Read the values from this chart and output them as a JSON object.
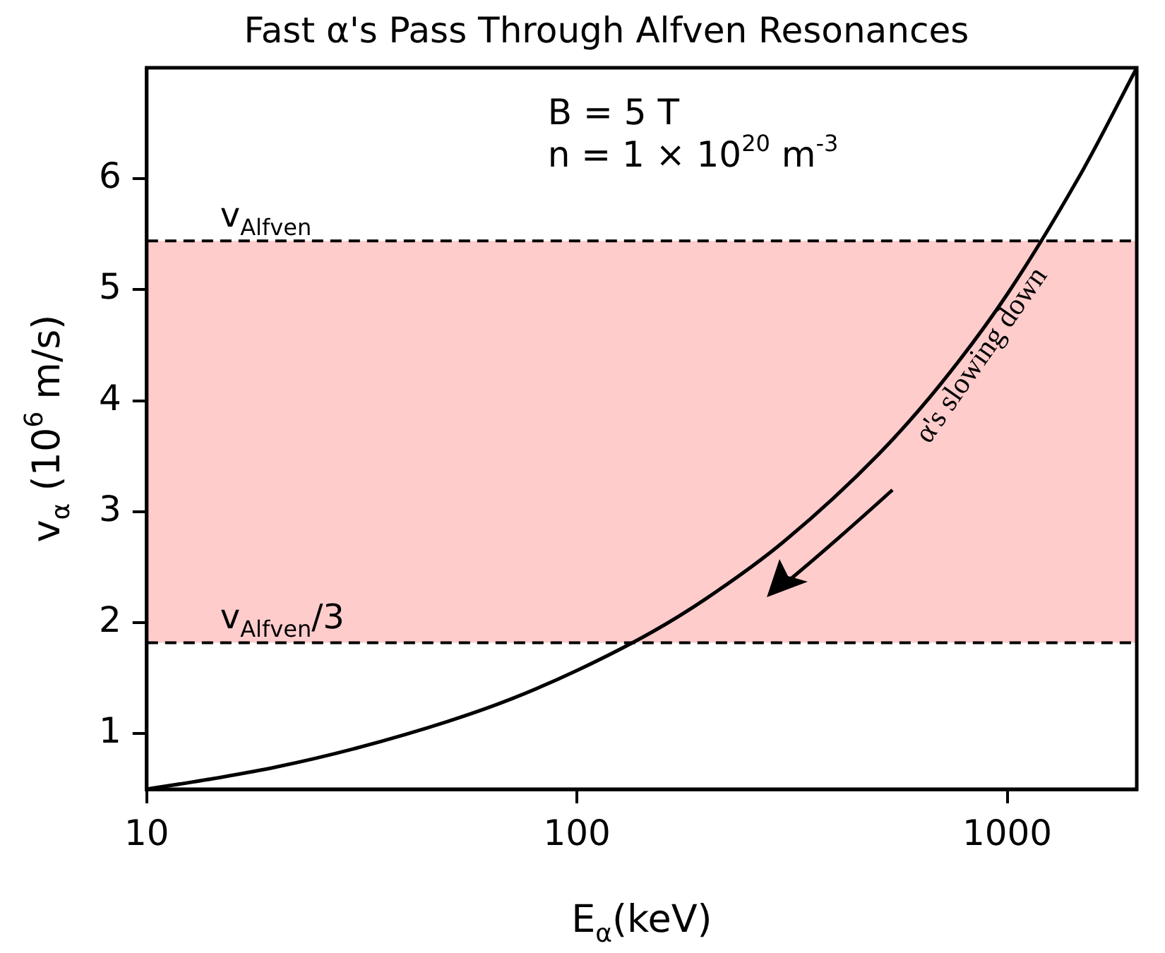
{
  "chart_data": {
    "type": "line",
    "title": "Fast α's Pass Through Alfven Resonances",
    "xlabel": "E$_{α}$(keV)",
    "ylabel": "v$_{α}$ (10$^{6}$ m/s)",
    "x": [
      10,
      15,
      20,
      30,
      50,
      70,
      100,
      150,
      200,
      300,
      500,
      700,
      1000,
      1500,
      2000
    ],
    "series": [
      {
        "color": "#000000",
        "values": [
          0.5,
          0.61,
          0.7,
          0.86,
          1.11,
          1.31,
          1.57,
          1.92,
          2.22,
          2.72,
          3.51,
          4.15,
          4.96,
          6.08,
          7.0
        ]
      }
    ],
    "log": "x",
    "xlim": [
      10,
      2000
    ],
    "xticks": [
      10,
      100,
      1000
    ],
    "ylim": [
      0.5,
      7.0
    ],
    "yticks": [
      1,
      2,
      3,
      4,
      5,
      6
    ],
    "bands": [
      {
        "axis": "y",
        "from": 1.82,
        "to": 5.44,
        "color": "#ffcccc"
      }
    ],
    "ref_lines": [
      {
        "axis": "y",
        "value": 5.44,
        "label": "v$_{Alfven}$",
        "line_style": "dashed",
        "color": "#000000"
      },
      {
        "axis": "y",
        "value": 1.82,
        "label": "v$_{Alfven}$/3",
        "line_style": "dashed",
        "color": "#000000"
      }
    ],
    "annotations": [
      "B = 5 T",
      "n = 1 × 10$^{20}$ m$^{-3}$",
      "α's slowing down"
    ],
    "grid": false,
    "legend": false,
    "marker": "none",
    "line_style": "solid"
  }
}
